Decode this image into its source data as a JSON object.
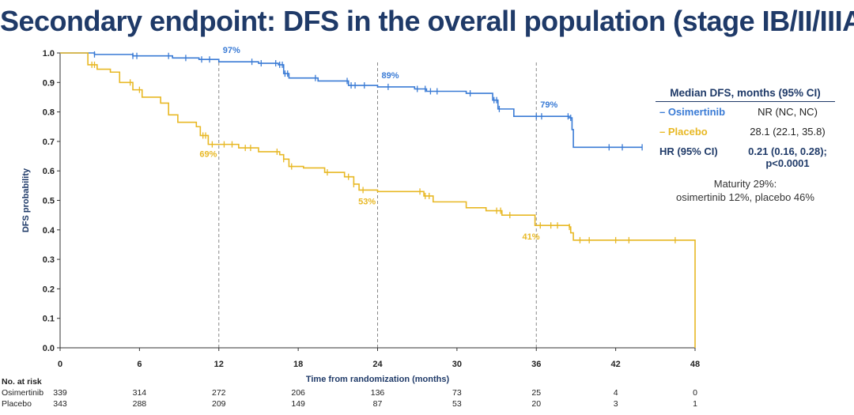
{
  "slide": {
    "title": "Secondary endpoint: DFS in the overall population (stage IB/II/IIIA)"
  },
  "colors": {
    "title": "#1f3a68",
    "osimertinib": "#3a7bd5",
    "placebo": "#e8b824",
    "dashed": "#888888"
  },
  "legend": {
    "header": "Median DFS, months (95% CI)",
    "rows": [
      {
        "label": "– Osimertinib",
        "value": "NR (NC, NC)"
      },
      {
        "label": "– Placebo",
        "value": "28.1 (22.1, 35.8)"
      }
    ],
    "hr_label": "HR (95% CI)",
    "hr_value_line1": "0.21 (0.16, 0.28);",
    "hr_value_line2": "p<0.0001",
    "maturity_line1": "Maturity 29%:",
    "maturity_line2": "osimertinib 12%, placebo 46%"
  },
  "chart_data": {
    "type": "line",
    "xlabel": "Time from randomization (months)",
    "ylabel": "DFS probability",
    "xlim": [
      0,
      48
    ],
    "ylim": [
      0,
      1
    ],
    "xticks": [
      "0",
      "6",
      "12",
      "18",
      "24",
      "30",
      "36",
      "42",
      "48"
    ],
    "yticks": [
      "0.0",
      "0.1",
      "0.2",
      "0.3",
      "0.4",
      "0.5",
      "0.6",
      "0.7",
      "0.8",
      "0.9",
      "1.0"
    ],
    "reference_lines_x": [
      12,
      24,
      36
    ],
    "series": [
      {
        "name": "Osimertinib",
        "color": "#3a7bd5",
        "points": [
          [
            0,
            1.0
          ],
          [
            2.5,
            1.0
          ],
          [
            2.6,
            0.995
          ],
          [
            5.5,
            0.99
          ],
          [
            8.5,
            0.983
          ],
          [
            10.5,
            0.978
          ],
          [
            12,
            0.97
          ],
          [
            15,
            0.965
          ],
          [
            16.5,
            0.96
          ],
          [
            16.9,
            0.93
          ],
          [
            17.3,
            0.915
          ],
          [
            19.5,
            0.905
          ],
          [
            21.8,
            0.89
          ],
          [
            24,
            0.885
          ],
          [
            26.8,
            0.878
          ],
          [
            27.7,
            0.87
          ],
          [
            30.7,
            0.863
          ],
          [
            32.7,
            0.84
          ],
          [
            33.1,
            0.81
          ],
          [
            34.3,
            0.785
          ],
          [
            36,
            0.785
          ],
          [
            38.5,
            0.78
          ],
          [
            38.7,
            0.74
          ],
          [
            38.8,
            0.68
          ],
          [
            44,
            0.68
          ]
        ],
        "censors": [
          2.6,
          5.5,
          5.8,
          8.2,
          9.5,
          10.7,
          11.3,
          14.5,
          15.2,
          16.3,
          16.6,
          16.8,
          17.0,
          17.2,
          19.3,
          21.7,
          22.0,
          22.3,
          23.0,
          24.8,
          27.0,
          27.6,
          28.0,
          28.5,
          31.0,
          32.8,
          33.0,
          33.2,
          36.0,
          36.4,
          38.4,
          38.6,
          41.5,
          42.5,
          44.0
        ],
        "labels": [
          {
            "x": 12,
            "y": 0.97,
            "text": "97%"
          },
          {
            "x": 24,
            "y": 0.885,
            "text": "89%"
          },
          {
            "x": 36,
            "y": 0.785,
            "text": "79%"
          }
        ],
        "at_risk": [
          339,
          314,
          272,
          206,
          136,
          73,
          25,
          4,
          0
        ]
      },
      {
        "name": "Placebo",
        "color": "#e8b824",
        "points": [
          [
            0,
            1.0
          ],
          [
            2.1,
            0.96
          ],
          [
            2.8,
            0.945
          ],
          [
            3.8,
            0.935
          ],
          [
            4.5,
            0.9
          ],
          [
            5.5,
            0.875
          ],
          [
            6.2,
            0.85
          ],
          [
            7.6,
            0.83
          ],
          [
            8.2,
            0.79
          ],
          [
            8.9,
            0.765
          ],
          [
            10.3,
            0.75
          ],
          [
            10.6,
            0.72
          ],
          [
            11.2,
            0.69
          ],
          [
            12,
            0.69
          ],
          [
            13.5,
            0.678
          ],
          [
            15,
            0.665
          ],
          [
            16.6,
            0.655
          ],
          [
            16.9,
            0.64
          ],
          [
            17.3,
            0.615
          ],
          [
            18.4,
            0.61
          ],
          [
            20.0,
            0.595
          ],
          [
            21.5,
            0.58
          ],
          [
            22.2,
            0.555
          ],
          [
            22.6,
            0.535
          ],
          [
            24,
            0.53
          ],
          [
            27.5,
            0.515
          ],
          [
            28.2,
            0.495
          ],
          [
            30.7,
            0.475
          ],
          [
            32.2,
            0.465
          ],
          [
            33.4,
            0.45
          ],
          [
            35.9,
            0.415
          ],
          [
            38.5,
            0.41
          ],
          [
            38.6,
            0.39
          ],
          [
            38.8,
            0.365
          ],
          [
            48,
            0.365
          ],
          [
            48,
            0.0
          ]
        ],
        "censors": [
          2.4,
          2.6,
          5.3,
          6.0,
          10.8,
          11.0,
          11.5,
          12.4,
          13.0,
          14.0,
          14.4,
          16.4,
          16.9,
          17.5,
          20.2,
          21.8,
          22.2,
          22.9,
          27.2,
          27.6,
          27.9,
          33.0,
          33.3,
          34.0,
          36.3,
          37.1,
          37.6,
          38.5,
          39.3,
          40.0,
          42.0,
          43.0,
          46.5
        ],
        "labels": [
          {
            "x": 11.2,
            "y": 0.69,
            "text": "69%"
          },
          {
            "x": 23.2,
            "y": 0.53,
            "text": "53%"
          },
          {
            "x": 35.6,
            "y": 0.41,
            "text": "41%"
          }
        ],
        "at_risk": [
          343,
          288,
          209,
          149,
          87,
          53,
          20,
          3,
          1
        ]
      }
    ],
    "at_risk_title": "No. at risk",
    "at_risk_row_labels": [
      "Osimertinib",
      "Placebo"
    ]
  }
}
